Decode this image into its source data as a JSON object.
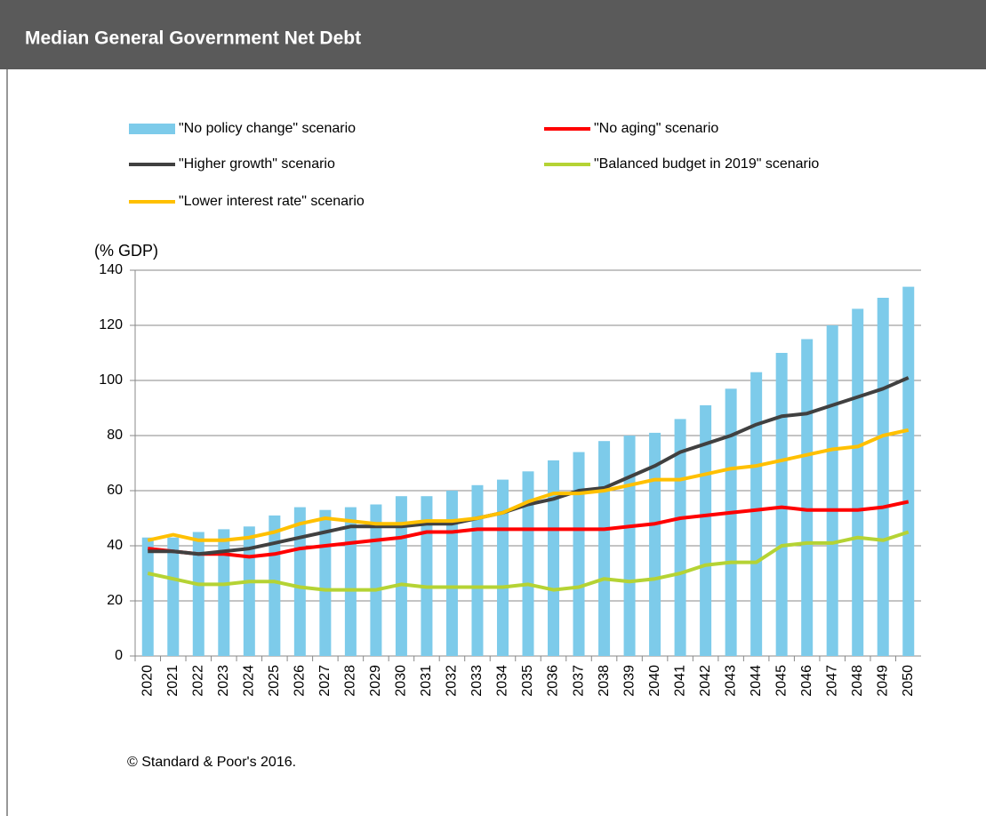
{
  "chart_data": {
    "type": "bar-line",
    "title": "Median General Government Net Debt",
    "y_axis_label": "(% GDP)",
    "source": "© Standard & Poor's 2016.",
    "categories": [
      "2020",
      "2021",
      "2022",
      "2023",
      "2024",
      "2025",
      "2026",
      "2027",
      "2028",
      "2029",
      "2030",
      "2031",
      "2032",
      "2033",
      "2034",
      "2035",
      "2036",
      "2037",
      "2038",
      "2039",
      "2040",
      "2041",
      "2042",
      "2043",
      "2044",
      "2045",
      "2046",
      "2047",
      "2048",
      "2049",
      "2050"
    ],
    "series": [
      {
        "name": "\"No policy change\" scenario",
        "type": "bar",
        "color": "#7dcbea",
        "values": [
          43,
          43,
          45,
          46,
          47,
          51,
          54,
          53,
          54,
          55,
          58,
          58,
          60,
          62,
          64,
          67,
          71,
          74,
          78,
          80,
          81,
          86,
          91,
          97,
          103,
          110,
          115,
          120,
          126,
          130,
          134
        ]
      },
      {
        "name": "\"No aging\" scenario",
        "type": "line",
        "color": "#ff0000",
        "values": [
          39,
          38,
          37,
          37,
          36,
          37,
          39,
          40,
          41,
          42,
          43,
          45,
          45,
          46,
          46,
          46,
          46,
          46,
          46,
          47,
          48,
          50,
          51,
          52,
          53,
          54,
          53,
          53,
          53,
          54,
          56
        ]
      },
      {
        "name": "\"Higher growth\" scenario",
        "type": "line",
        "color": "#404040",
        "values": [
          38,
          38,
          37,
          38,
          39,
          41,
          43,
          45,
          47,
          47,
          47,
          48,
          48,
          50,
          52,
          55,
          57,
          60,
          61,
          65,
          69,
          74,
          77,
          80,
          84,
          87,
          88,
          91,
          94,
          97,
          101
        ]
      },
      {
        "name": "\"Balanced budget in 2019\" scenario",
        "type": "line",
        "color": "#b5d334",
        "values": [
          30,
          28,
          26,
          26,
          27,
          27,
          25,
          24,
          24,
          24,
          26,
          25,
          25,
          25,
          25,
          26,
          24,
          25,
          28,
          27,
          28,
          30,
          33,
          34,
          34,
          40,
          41,
          41,
          43,
          42,
          45
        ]
      },
      {
        "name": "\"Lower interest rate\" scenario",
        "type": "line",
        "color": "#ffc000",
        "values": [
          42,
          44,
          42,
          42,
          43,
          45,
          48,
          50,
          49,
          48,
          48,
          49,
          49,
          50,
          52,
          56,
          59,
          59,
          60,
          62,
          64,
          64,
          66,
          68,
          69,
          71,
          73,
          75,
          76,
          80,
          82
        ]
      }
    ],
    "ylim": [
      0,
      140
    ],
    "yticks": [
      0,
      20,
      40,
      60,
      80,
      100,
      120,
      140
    ],
    "grid": true
  }
}
